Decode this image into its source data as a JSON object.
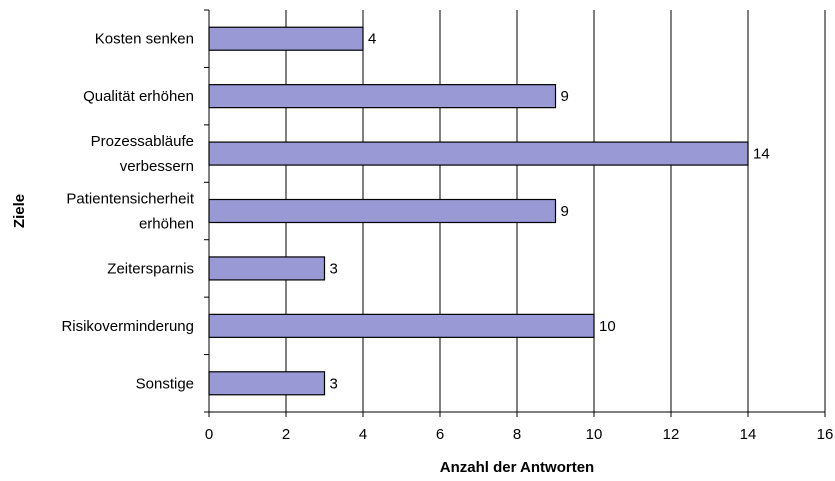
{
  "chart_data": {
    "type": "bar",
    "orientation": "horizontal",
    "categories": [
      [
        "Kosten senken"
      ],
      [
        "Qualität erhöhen"
      ],
      [
        "Prozessabläufe",
        "verbessern"
      ],
      [
        "Patientensicherheit",
        "erhöhen"
      ],
      [
        "Zeitersparnis"
      ],
      [
        "Risikoverminderung"
      ],
      [
        "Sonstige"
      ]
    ],
    "values": [
      4,
      9,
      14,
      9,
      3,
      10,
      3
    ],
    "xlabel": "Anzahl der Antworten",
    "ylabel": "Ziele",
    "xlim": [
      0,
      16
    ],
    "xticks": [
      0,
      2,
      4,
      6,
      8,
      10,
      12,
      14,
      16
    ],
    "grid": "vertical",
    "bar_color": "#9999d6",
    "bar_edge_color": "#000000"
  }
}
